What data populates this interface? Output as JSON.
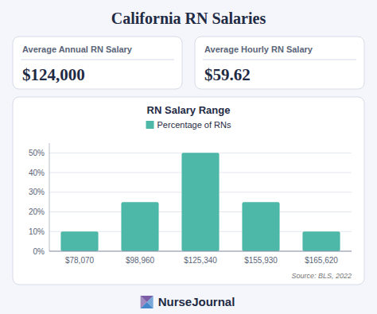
{
  "title": "California RN Salaries",
  "cards": [
    {
      "label": "Average Annual RN Salary",
      "value": "$124,000"
    },
    {
      "label": "Average Hourly RN Salary",
      "value": "$59.62"
    }
  ],
  "source": "Source: BLS, 2022",
  "logo_text": "NurseJournal",
  "chart_data": {
    "type": "bar",
    "title": "RN Salary Range",
    "categories": [
      "$78,070",
      "$98,960",
      "$125,340",
      "$155,930",
      "$165,620"
    ],
    "series": [
      {
        "name": "Percentage of RNs",
        "color": "#4db8a8",
        "values": [
          10,
          25,
          50,
          25,
          10
        ]
      }
    ],
    "ylim": [
      0,
      55
    ],
    "yticks": [
      {
        "value": 0,
        "label": "0%"
      },
      {
        "value": 10,
        "label": "10%"
      },
      {
        "value": 20,
        "label": "20%"
      },
      {
        "value": 30,
        "label": "30%"
      },
      {
        "value": 40,
        "label": "40%"
      },
      {
        "value": 50,
        "label": "50%"
      }
    ],
    "grid": true,
    "legend": "top"
  }
}
